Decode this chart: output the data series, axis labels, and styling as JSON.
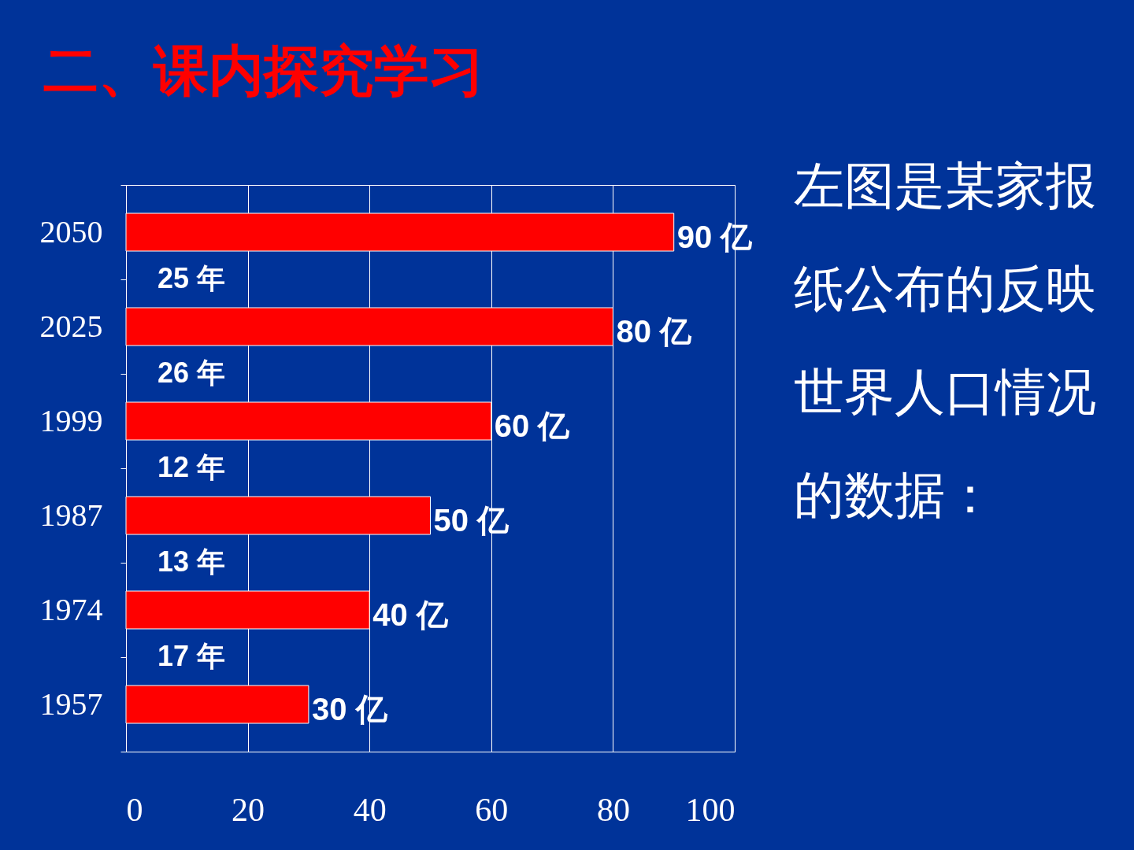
{
  "chart_data": {
    "type": "bar",
    "orientation": "horizontal",
    "title": "二、课内探究学习",
    "categories": [
      "2050",
      "2025",
      "1999",
      "1987",
      "1974",
      "1957"
    ],
    "values": [
      90,
      80,
      60,
      50,
      40,
      30
    ],
    "color": "#ff0000",
    "value_labels": [
      "90 亿",
      "80 亿",
      "60 亿",
      "50 亿",
      "40 亿",
      "30 亿"
    ],
    "xlim": [
      0,
      100
    ],
    "xticks": [
      0,
      20,
      40,
      60,
      80,
      100
    ],
    "grid": "x",
    "annotations": [
      "25 年",
      "26 年",
      "12 年",
      "13 年",
      "17 年",
      "左图是某家报纸公布的反映世界人口情况的数据："
    ]
  }
}
